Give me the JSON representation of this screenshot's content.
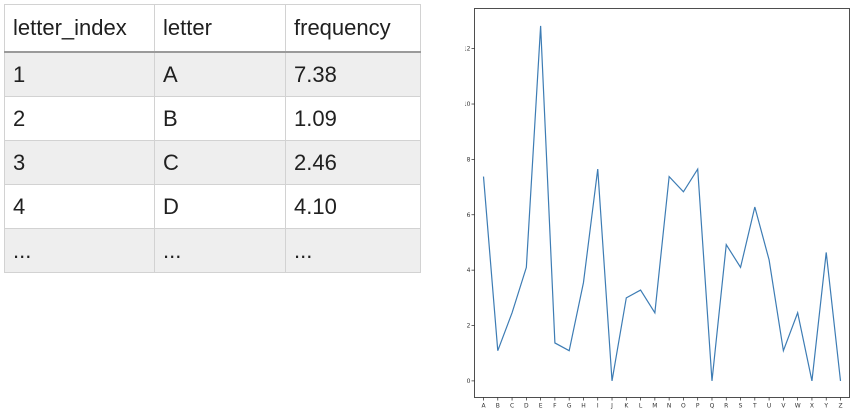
{
  "table": {
    "columns": [
      "letter_index",
      "letter",
      "frequency"
    ],
    "rows": [
      [
        "1",
        "A",
        "7.38"
      ],
      [
        "2",
        "B",
        "1.09"
      ],
      [
        "3",
        "C",
        "2.46"
      ],
      [
        "4",
        "D",
        "4.10"
      ],
      [
        "...",
        "...",
        "..."
      ]
    ]
  },
  "chart_data": {
    "type": "line",
    "x": [
      "A",
      "B",
      "C",
      "D",
      "E",
      "F",
      "G",
      "H",
      "I",
      "J",
      "K",
      "L",
      "M",
      "N",
      "O",
      "P",
      "Q",
      "R",
      "S",
      "T",
      "U",
      "V",
      "W",
      "X",
      "Y",
      "Z"
    ],
    "series": [
      {
        "values": [
          7.38,
          1.09,
          2.46,
          4.1,
          12.82,
          1.37,
          1.09,
          3.55,
          7.65,
          0.0,
          3.0,
          3.28,
          2.46,
          7.38,
          6.83,
          7.65,
          0.0,
          4.92,
          4.1,
          6.28,
          4.37,
          1.09,
          2.46,
          0.0,
          4.64,
          0.0
        ]
      }
    ],
    "yticks": [
      0,
      2,
      4,
      6,
      8,
      10,
      12
    ],
    "ylim": [
      -0.6,
      13.45
    ],
    "xlabel": "",
    "ylabel": "",
    "grid": false,
    "line_color": "#3d7cb4"
  }
}
